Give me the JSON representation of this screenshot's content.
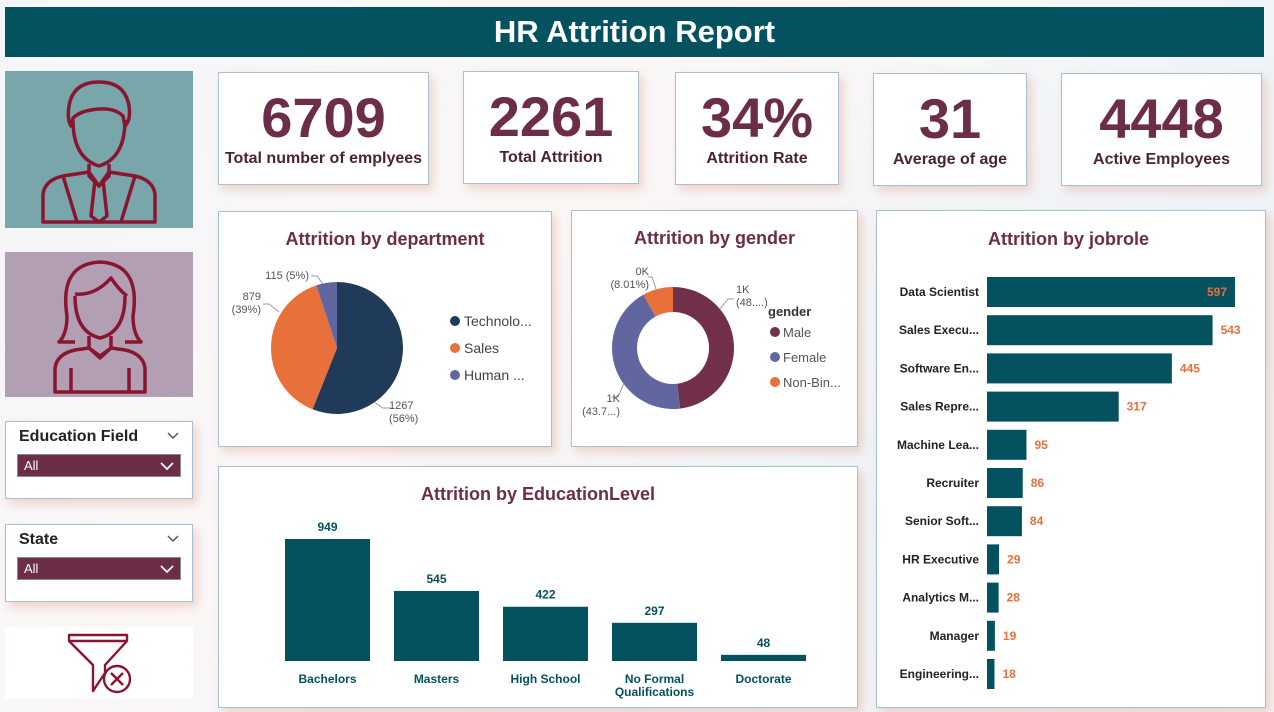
{
  "header": {
    "title": "HR Attrition Report"
  },
  "kpis": [
    {
      "value": "6709",
      "label": "Total number of emplyees"
    },
    {
      "value": "2261",
      "label": "Total Attrition"
    },
    {
      "value": "34%",
      "label": "Attrition Rate"
    },
    {
      "value": "31",
      "label": "Average of age"
    },
    {
      "value": "4448",
      "label": "Active Employees"
    }
  ],
  "slicers": {
    "education_field": {
      "title": "Education Field",
      "value": "All"
    },
    "state": {
      "title": "State",
      "value": "All"
    }
  },
  "icons": {
    "male": "male-employee-icon",
    "female": "female-employee-icon",
    "clear": "clear-filter-icon"
  },
  "colors": {
    "header": "#04525f",
    "accent": "#6b2d47",
    "bar": "#04525f",
    "orange": "#e8703a",
    "navy": "#203b59",
    "purple": "#6266a0"
  },
  "chart_data": [
    {
      "type": "pie",
      "title": "Attrition by department",
      "slices": [
        {
          "name": "Technolo...",
          "value": 1267,
          "label": "1267\n(56%)",
          "color": "#203b59"
        },
        {
          "name": "Sales",
          "value": 879,
          "label": "879\n(39%)",
          "color": "#e8703a"
        },
        {
          "name": "Human ...",
          "value": 115,
          "label": "115 (5%)",
          "color": "#6266a0"
        }
      ],
      "legend": "right"
    },
    {
      "type": "pie",
      "title": "Attrition by gender",
      "legend_title": "gender",
      "slices": [
        {
          "name": "Male",
          "value": 48,
          "label": "1K\n(48....)",
          "color": "#722f49"
        },
        {
          "name": "Female",
          "value": 43.7,
          "label": "1K\n(43.7...)",
          "color": "#6266a0"
        },
        {
          "name": "Non-Bin...",
          "value": 8.01,
          "label": "0K\n(8.01%)",
          "color": "#e8703a"
        }
      ],
      "legend": "right"
    },
    {
      "type": "bar",
      "title": "Attrition by EducationLevel",
      "categories": [
        "Bachelors",
        "Masters",
        "High School",
        "No Formal Qualifications",
        "Doctorate"
      ],
      "category_lines": [
        [
          "Bachelors"
        ],
        [
          "Masters"
        ],
        [
          "High School"
        ],
        [
          "No Formal",
          "Qualifications"
        ],
        [
          "Doctorate"
        ]
      ],
      "values": [
        949,
        545,
        422,
        297,
        48
      ]
    },
    {
      "type": "bar",
      "orientation": "horizontal",
      "title": "Attrition by jobrole",
      "categories": [
        "Data Scientist",
        "Sales Execu...",
        "Software En...",
        "Sales Repre...",
        "Machine Lea...",
        "Recruiter",
        "Senior Soft...",
        "HR Executive",
        "Analytics M...",
        "Manager",
        "Engineering..."
      ],
      "values": [
        597,
        543,
        445,
        317,
        95,
        86,
        84,
        29,
        28,
        19,
        18
      ]
    }
  ]
}
